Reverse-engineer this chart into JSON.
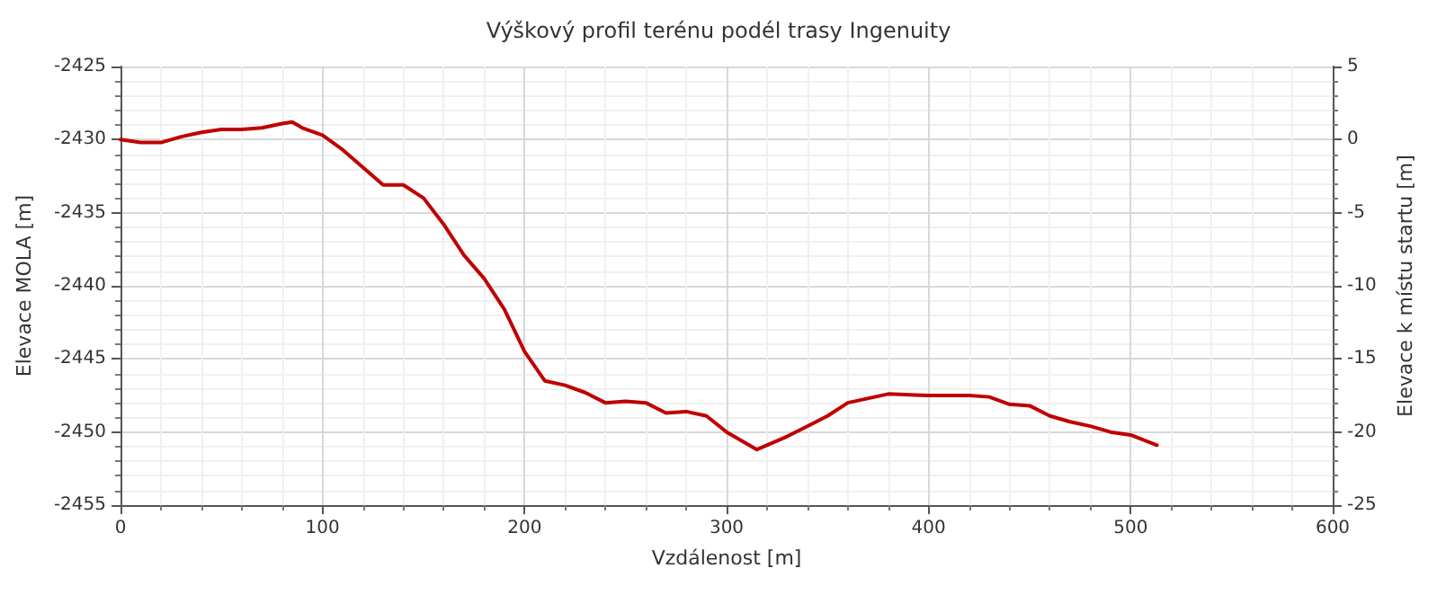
{
  "chart_data": {
    "type": "line",
    "title": "Výškový profil terénu podél trasy Ingenuity",
    "xlabel": "Vzdálenost [m]",
    "ylabel": "Elevace MOLA [m]",
    "y2label": "Elevace k místu startu [m]",
    "x": [
      0,
      10,
      20,
      30,
      40,
      50,
      60,
      70,
      80,
      85,
      90,
      100,
      110,
      120,
      130,
      140,
      150,
      160,
      170,
      180,
      190,
      200,
      210,
      220,
      230,
      240,
      250,
      260,
      270,
      280,
      290,
      300,
      315,
      330,
      340,
      350,
      360,
      380,
      400,
      420,
      430,
      440,
      450,
      460,
      470,
      480,
      490,
      500,
      513
    ],
    "series": [
      {
        "color": "#c00000",
        "values": [
          -2430.0,
          -2430.2,
          -2430.2,
          -2429.8,
          -2429.5,
          -2429.3,
          -2429.3,
          -2429.2,
          -2428.9,
          -2428.8,
          -2429.2,
          -2429.7,
          -2430.7,
          -2431.9,
          -2433.1,
          -2433.1,
          -2434.0,
          -2435.8,
          -2437.9,
          -2439.5,
          -2441.6,
          -2444.5,
          -2446.5,
          -2446.8,
          -2447.3,
          -2448.0,
          -2447.9,
          -2448.0,
          -2448.7,
          -2448.6,
          -2448.9,
          -2450.0,
          -2451.2,
          -2450.3,
          -2449.6,
          -2448.9,
          -2448.0,
          -2447.4,
          -2447.5,
          -2447.5,
          -2447.6,
          -2448.1,
          -2448.2,
          -2448.9,
          -2449.3,
          -2449.6,
          -2450.0,
          -2450.2,
          -2450.9
        ]
      }
    ],
    "xlim": [
      0,
      600
    ],
    "xticks": [
      0,
      100,
      200,
      300,
      400,
      500,
      600
    ],
    "ylim": [
      -2455,
      -2425
    ],
    "yticks": [
      -2455,
      -2450,
      -2445,
      -2440,
      -2435,
      -2430,
      -2425
    ],
    "y2lim": [
      -25,
      5
    ],
    "y2ticks": [
      -25,
      -20,
      -15,
      -10,
      -5,
      0,
      5
    ],
    "grid": true,
    "marker": "none",
    "line_style": "solid"
  }
}
